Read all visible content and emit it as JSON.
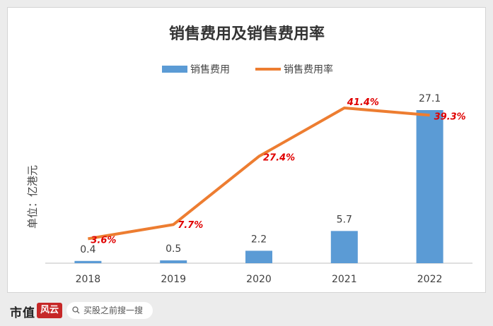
{
  "chart_data": {
    "type": "bar+line",
    "title": "销售费用及销售费用率",
    "ylabel": "单位：亿港元",
    "categories": [
      "2018",
      "2019",
      "2020",
      "2021",
      "2022"
    ],
    "series": [
      {
        "name": "销售费用",
        "type": "bar",
        "values": [
          0.4,
          0.5,
          2.2,
          5.7,
          27.1
        ],
        "labels": [
          "0.4",
          "0.5",
          "2.2",
          "5.7",
          "27.1"
        ],
        "color": "#5b9bd5"
      },
      {
        "name": "销售费用率",
        "type": "line",
        "values": [
          3.6,
          7.7,
          27.4,
          41.4,
          39.3
        ],
        "labels": [
          "3.6%",
          "7.7%",
          "27.4%",
          "41.4%",
          "39.3%"
        ],
        "color": "#ed7d31",
        "label_color": "#e00000"
      }
    ],
    "legend_position": "top-center",
    "grid": false
  },
  "footer": {
    "brand": "市值",
    "brand_mark": "风云",
    "search_placeholder": "买股之前搜一搜"
  }
}
